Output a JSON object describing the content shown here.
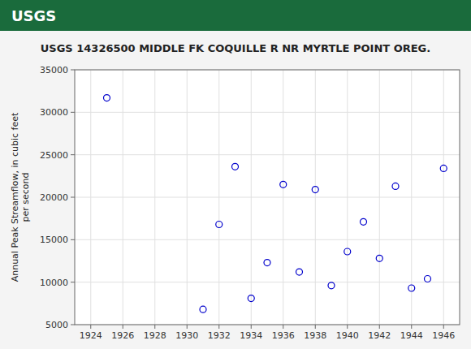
{
  "chart_data": {
    "type": "scatter",
    "title": "USGS 14326500 MIDDLE FK COQUILLE R NR MYRTLE POINT OREG.",
    "annotations": [
      "USGS"
    ],
    "ylabel": "Annual Peak Streamflow, in cubic feet\nper second",
    "x": [
      1925,
      1931,
      1932,
      1933,
      1934,
      1935,
      1936,
      1937,
      1938,
      1939,
      1940,
      1941,
      1942,
      1943,
      1944,
      1945,
      1946
    ],
    "values": [
      31700,
      6800,
      16800,
      23600,
      8100,
      12300,
      21500,
      11200,
      20900,
      9600,
      13600,
      17100,
      12800,
      21300,
      9300,
      10400,
      23400
    ],
    "color": "#0000cc",
    "marker": "circle",
    "xlim": [
      1923,
      1947
    ],
    "ylim": [
      5000,
      35000
    ],
    "xticks": [
      1924,
      1926,
      1928,
      1930,
      1932,
      1934,
      1936,
      1938,
      1940,
      1942,
      1944,
      1946
    ],
    "yticks": [
      5000,
      10000,
      15000,
      20000,
      25000,
      30000,
      35000
    ],
    "grid": true
  }
}
